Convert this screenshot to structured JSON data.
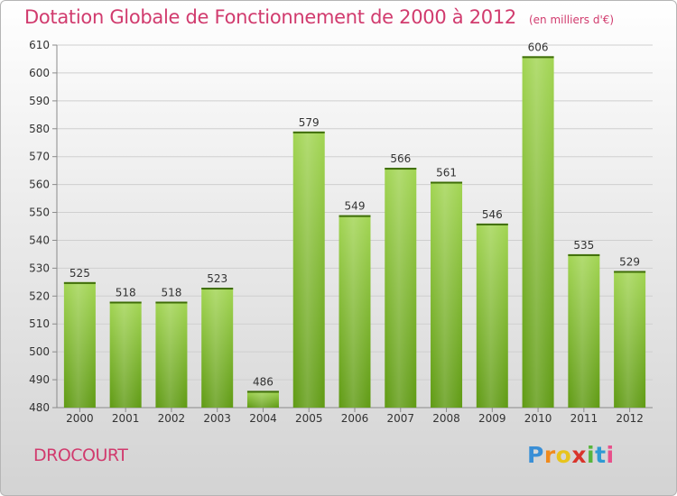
{
  "title": "Dotation Globale de Fonctionnement de 2000 à 2012",
  "unit": "(en milliers d'€)",
  "commune": "DROCOURT",
  "brand": "Proxiti",
  "colors": {
    "title": "#d13b6e",
    "bar_light": "#a2d553",
    "bar_dark": "#5f9a13",
    "grid": "#cfcfcf"
  },
  "chart_data": {
    "type": "bar",
    "title": "Dotation Globale de Fonctionnement de 2000 à 2012",
    "subtitle": "(en milliers d'€)",
    "categories": [
      "2000",
      "2001",
      "2002",
      "2003",
      "2004",
      "2005",
      "2006",
      "2007",
      "2008",
      "2009",
      "2010",
      "2011",
      "2012"
    ],
    "values": [
      525,
      518,
      518,
      523,
      486,
      579,
      549,
      566,
      561,
      546,
      606,
      535,
      529
    ],
    "ylim": [
      480,
      610
    ],
    "yticks": [
      480,
      490,
      500,
      510,
      520,
      530,
      540,
      550,
      560,
      570,
      580,
      590,
      600,
      610
    ],
    "grid": true,
    "legend": "none"
  }
}
